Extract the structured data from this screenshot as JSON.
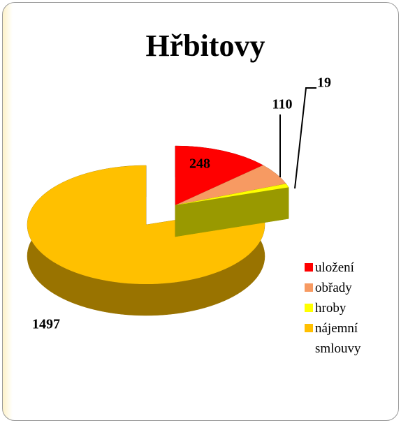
{
  "chart_data": {
    "type": "pie",
    "title": "Hřbitovy",
    "categories": [
      "uložení",
      "obřady",
      "hroby",
      "nájemní smlouvy"
    ],
    "values": [
      248,
      110,
      19,
      1497
    ],
    "colors": [
      "#ff0000",
      "#f79a62",
      "#ffff00",
      "#ffc000"
    ],
    "legend": "right",
    "three_d": true
  }
}
